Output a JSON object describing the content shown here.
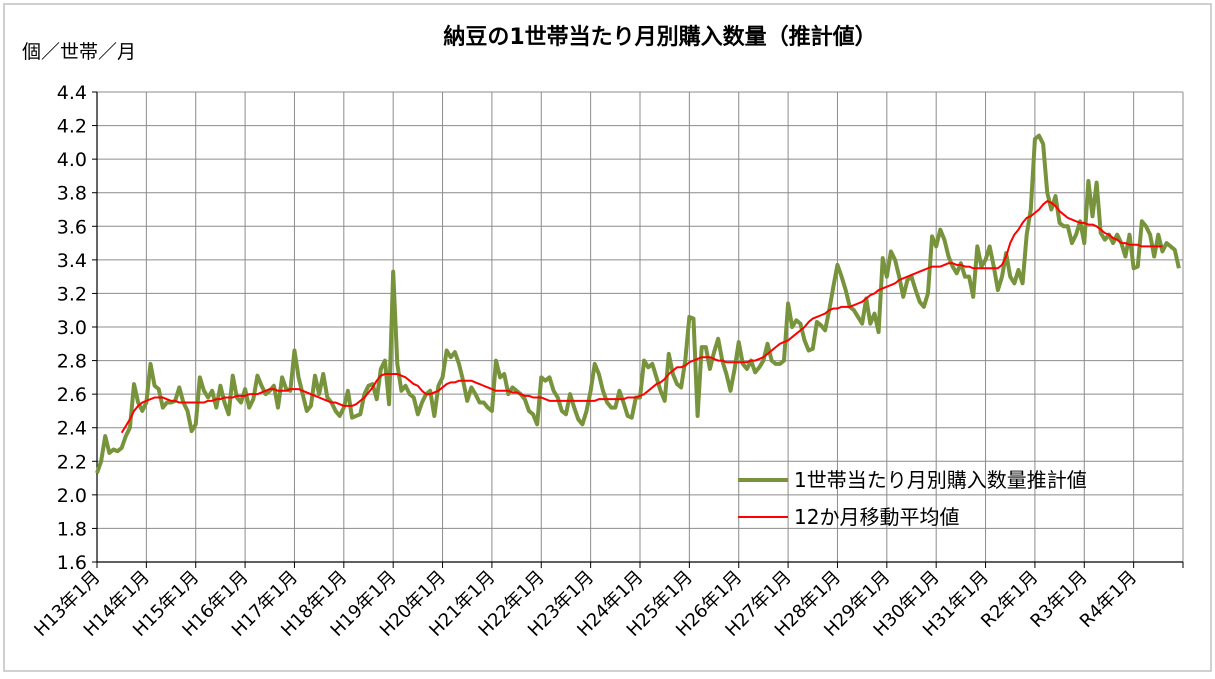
{
  "chart_data": {
    "type": "line",
    "title": "納豆の1世帯当たり月別購入数量（推計値）",
    "y_label": "個／世帯／月",
    "categories": [
      "H13年1月",
      null,
      null,
      null,
      null,
      null,
      null,
      null,
      null,
      null,
      null,
      null,
      "H14年1月",
      null,
      null,
      null,
      null,
      null,
      null,
      null,
      null,
      null,
      null,
      null,
      "H15年1月",
      null,
      null,
      null,
      null,
      null,
      null,
      null,
      null,
      null,
      null,
      null,
      "H16年1月",
      null,
      null,
      null,
      null,
      null,
      null,
      null,
      null,
      null,
      null,
      null,
      "H17年1月",
      null,
      null,
      null,
      null,
      null,
      null,
      null,
      null,
      null,
      null,
      null,
      "H18年1月",
      null,
      null,
      null,
      null,
      null,
      null,
      null,
      null,
      null,
      null,
      null,
      "H19年1月",
      null,
      null,
      null,
      null,
      null,
      null,
      null,
      null,
      null,
      null,
      null,
      "H20年1月",
      null,
      null,
      null,
      null,
      null,
      null,
      null,
      null,
      null,
      null,
      null,
      "H21年1月",
      null,
      null,
      null,
      null,
      null,
      null,
      null,
      null,
      null,
      null,
      null,
      "H22年1月",
      null,
      null,
      null,
      null,
      null,
      null,
      null,
      null,
      null,
      null,
      null,
      "H23年1月",
      null,
      null,
      null,
      null,
      null,
      null,
      null,
      null,
      null,
      null,
      null,
      "H24年1月",
      null,
      null,
      null,
      null,
      null,
      null,
      null,
      null,
      null,
      null,
      null,
      "H25年1月",
      null,
      null,
      null,
      null,
      null,
      null,
      null,
      null,
      null,
      null,
      null,
      "H26年1月",
      null,
      null,
      null,
      null,
      null,
      null,
      null,
      null,
      null,
      null,
      null,
      "H27年1月",
      null,
      null,
      null,
      null,
      null,
      null,
      null,
      null,
      null,
      null,
      null,
      "H28年1月",
      null,
      null,
      null,
      null,
      null,
      null,
      null,
      null,
      null,
      null,
      null,
      "H29年1月",
      null,
      null,
      null,
      null,
      null,
      null,
      null,
      null,
      null,
      null,
      null,
      "H30年1月",
      null,
      null,
      null,
      null,
      null,
      null,
      null,
      null,
      null,
      null,
      null,
      "H31年1月",
      null,
      null,
      null,
      null,
      null,
      null,
      null,
      null,
      null,
      null,
      null,
      "R2年1月",
      null,
      null,
      null,
      null,
      null,
      null,
      null,
      null,
      null,
      null,
      null,
      "R3年1月",
      null,
      null,
      null,
      null,
      null,
      null,
      null,
      null,
      null,
      null,
      null,
      "R4年1月",
      null,
      null,
      null,
      null,
      null,
      null,
      null,
      null,
      null,
      null,
      null
    ],
    "series": [
      {
        "name": "1世帯当たり月別購入数量推計値",
        "color": "#77933c",
        "width": 4,
        "values": [
          2.13,
          2.2,
          2.35,
          2.25,
          2.27,
          2.26,
          2.28,
          2.35,
          2.4,
          2.66,
          2.55,
          2.5,
          2.55,
          2.78,
          2.65,
          2.63,
          2.52,
          2.55,
          2.55,
          2.56,
          2.64,
          2.55,
          2.5,
          2.38,
          2.42,
          2.7,
          2.62,
          2.58,
          2.62,
          2.52,
          2.65,
          2.55,
          2.48,
          2.71,
          2.58,
          2.55,
          2.63,
          2.52,
          2.57,
          2.71,
          2.65,
          2.6,
          2.62,
          2.65,
          2.52,
          2.7,
          2.63,
          2.62,
          2.86,
          2.7,
          2.6,
          2.5,
          2.53,
          2.71,
          2.6,
          2.72,
          2.58,
          2.55,
          2.5,
          2.47,
          2.52,
          2.62,
          2.46,
          2.47,
          2.48,
          2.6,
          2.65,
          2.66,
          2.57,
          2.75,
          2.8,
          2.54,
          3.33,
          2.78,
          2.62,
          2.65,
          2.6,
          2.58,
          2.48,
          2.55,
          2.6,
          2.62,
          2.47,
          2.65,
          2.7,
          2.86,
          2.82,
          2.85,
          2.78,
          2.68,
          2.56,
          2.64,
          2.6,
          2.55,
          2.55,
          2.52,
          2.5,
          2.8,
          2.7,
          2.72,
          2.6,
          2.64,
          2.62,
          2.6,
          2.57,
          2.5,
          2.48,
          2.42,
          2.7,
          2.68,
          2.7,
          2.62,
          2.58,
          2.5,
          2.48,
          2.6,
          2.52,
          2.45,
          2.42,
          2.5,
          2.62,
          2.78,
          2.72,
          2.62,
          2.55,
          2.52,
          2.52,
          2.62,
          2.55,
          2.47,
          2.46,
          2.58,
          2.58,
          2.8,
          2.76,
          2.78,
          2.7,
          2.62,
          2.56,
          2.84,
          2.72,
          2.66,
          2.64,
          2.8,
          3.06,
          3.05,
          2.47,
          2.88,
          2.88,
          2.75,
          2.85,
          2.93,
          2.8,
          2.72,
          2.62,
          2.75,
          2.91,
          2.78,
          2.75,
          2.8,
          2.73,
          2.76,
          2.8,
          2.9,
          2.8,
          2.78,
          2.78,
          2.8,
          3.14,
          3.0,
          3.04,
          3.02,
          2.92,
          2.86,
          2.87,
          3.03,
          3.01,
          2.98,
          3.1,
          3.24,
          3.37,
          3.3,
          3.22,
          3.12,
          3.1,
          3.06,
          3.02,
          3.17,
          3.02,
          3.08,
          2.97,
          3.41,
          3.3,
          3.45,
          3.4,
          3.3,
          3.18,
          3.28,
          3.3,
          3.22,
          3.15,
          3.12,
          3.2,
          3.54,
          3.48,
          3.58,
          3.52,
          3.42,
          3.36,
          3.32,
          3.38,
          3.3,
          3.3,
          3.18,
          3.48,
          3.36,
          3.4,
          3.48,
          3.36,
          3.22,
          3.3,
          3.44,
          3.3,
          3.26,
          3.34,
          3.26,
          3.55,
          3.7,
          4.12,
          4.14,
          4.09,
          3.8,
          3.7,
          3.78,
          3.62,
          3.6,
          3.6,
          3.5,
          3.55,
          3.63,
          3.5,
          3.87,
          3.66,
          3.86,
          3.56,
          3.52,
          3.55,
          3.5,
          3.55,
          3.5,
          3.42,
          3.55,
          3.35,
          3.36,
          3.63,
          3.6,
          3.55,
          3.42,
          3.55,
          3.45,
          3.5,
          3.48,
          3.46,
          3.35
        ]
      },
      {
        "name": "12か月移動平均値",
        "color": "#ff0000",
        "width": 2,
        "values": [
          null,
          null,
          null,
          null,
          null,
          null,
          2.37,
          2.41,
          2.45,
          2.5,
          2.53,
          2.55,
          2.56,
          2.57,
          2.58,
          2.58,
          2.58,
          2.57,
          2.56,
          2.56,
          2.55,
          2.55,
          2.55,
          2.55,
          2.55,
          2.55,
          2.55,
          2.56,
          2.56,
          2.57,
          2.57,
          2.58,
          2.58,
          2.58,
          2.59,
          2.59,
          2.59,
          2.6,
          2.6,
          2.6,
          2.61,
          2.62,
          2.63,
          2.63,
          2.62,
          2.62,
          2.62,
          2.63,
          2.63,
          2.63,
          2.62,
          2.61,
          2.6,
          2.59,
          2.58,
          2.57,
          2.56,
          2.55,
          2.55,
          2.54,
          2.53,
          2.53,
          2.53,
          2.54,
          2.56,
          2.58,
          2.61,
          2.64,
          2.68,
          2.71,
          2.72,
          2.72,
          2.72,
          2.72,
          2.71,
          2.7,
          2.68,
          2.66,
          2.65,
          2.62,
          2.6,
          2.6,
          2.61,
          2.62,
          2.64,
          2.66,
          2.67,
          2.67,
          2.68,
          2.68,
          2.68,
          2.68,
          2.67,
          2.66,
          2.65,
          2.64,
          2.63,
          2.62,
          2.62,
          2.62,
          2.62,
          2.61,
          2.61,
          2.6,
          2.59,
          2.59,
          2.58,
          2.58,
          2.58,
          2.57,
          2.56,
          2.56,
          2.56,
          2.56,
          2.56,
          2.56,
          2.56,
          2.56,
          2.56,
          2.56,
          2.56,
          2.56,
          2.57,
          2.57,
          2.57,
          2.57,
          2.57,
          2.57,
          2.57,
          2.58,
          2.58,
          2.58,
          2.59,
          2.6,
          2.62,
          2.64,
          2.66,
          2.67,
          2.69,
          2.72,
          2.74,
          2.76,
          2.76,
          2.77,
          2.79,
          2.8,
          2.81,
          2.82,
          2.82,
          2.82,
          2.81,
          2.8,
          2.8,
          2.79,
          2.79,
          2.79,
          2.79,
          2.79,
          2.79,
          2.8,
          2.8,
          2.81,
          2.82,
          2.84,
          2.86,
          2.88,
          2.9,
          2.91,
          2.92,
          2.94,
          2.96,
          2.98,
          3.0,
          3.03,
          3.05,
          3.06,
          3.07,
          3.08,
          3.1,
          3.11,
          3.11,
          3.12,
          3.12,
          3.12,
          3.13,
          3.14,
          3.15,
          3.17,
          3.19,
          3.2,
          3.22,
          3.23,
          3.24,
          3.25,
          3.26,
          3.28,
          3.29,
          3.3,
          3.31,
          3.32,
          3.33,
          3.34,
          3.35,
          3.36,
          3.36,
          3.36,
          3.37,
          3.38,
          3.38,
          3.37,
          3.37,
          3.36,
          3.36,
          3.35,
          3.35,
          3.35,
          3.35,
          3.35,
          3.35,
          3.35,
          3.37,
          3.42,
          3.5,
          3.55,
          3.58,
          3.62,
          3.65,
          3.66,
          3.68,
          3.7,
          3.73,
          3.75,
          3.74,
          3.72,
          3.69,
          3.67,
          3.65,
          3.64,
          3.63,
          3.62,
          3.62,
          3.61,
          3.61,
          3.6,
          3.58,
          3.56,
          3.55,
          3.53,
          3.52,
          3.5,
          3.5,
          3.49,
          3.49,
          3.49,
          3.48,
          3.48,
          3.48,
          3.48,
          3.48,
          3.48,
          null,
          null,
          null,
          null
        ]
      }
    ],
    "ylim": [
      1.6,
      4.4
    ],
    "yticks": [
      1.6,
      1.8,
      {
        "value": 2,
        "label": "2.0"
      },
      2.2,
      2.4,
      2.6,
      2.8,
      {
        "value": 3,
        "label": "3.0"
      },
      3.2,
      3.4,
      3.6,
      3.8,
      {
        "value": 4,
        "label": "4.0"
      },
      4.2,
      4.4
    ],
    "grid": true,
    "legend": "lower right"
  }
}
